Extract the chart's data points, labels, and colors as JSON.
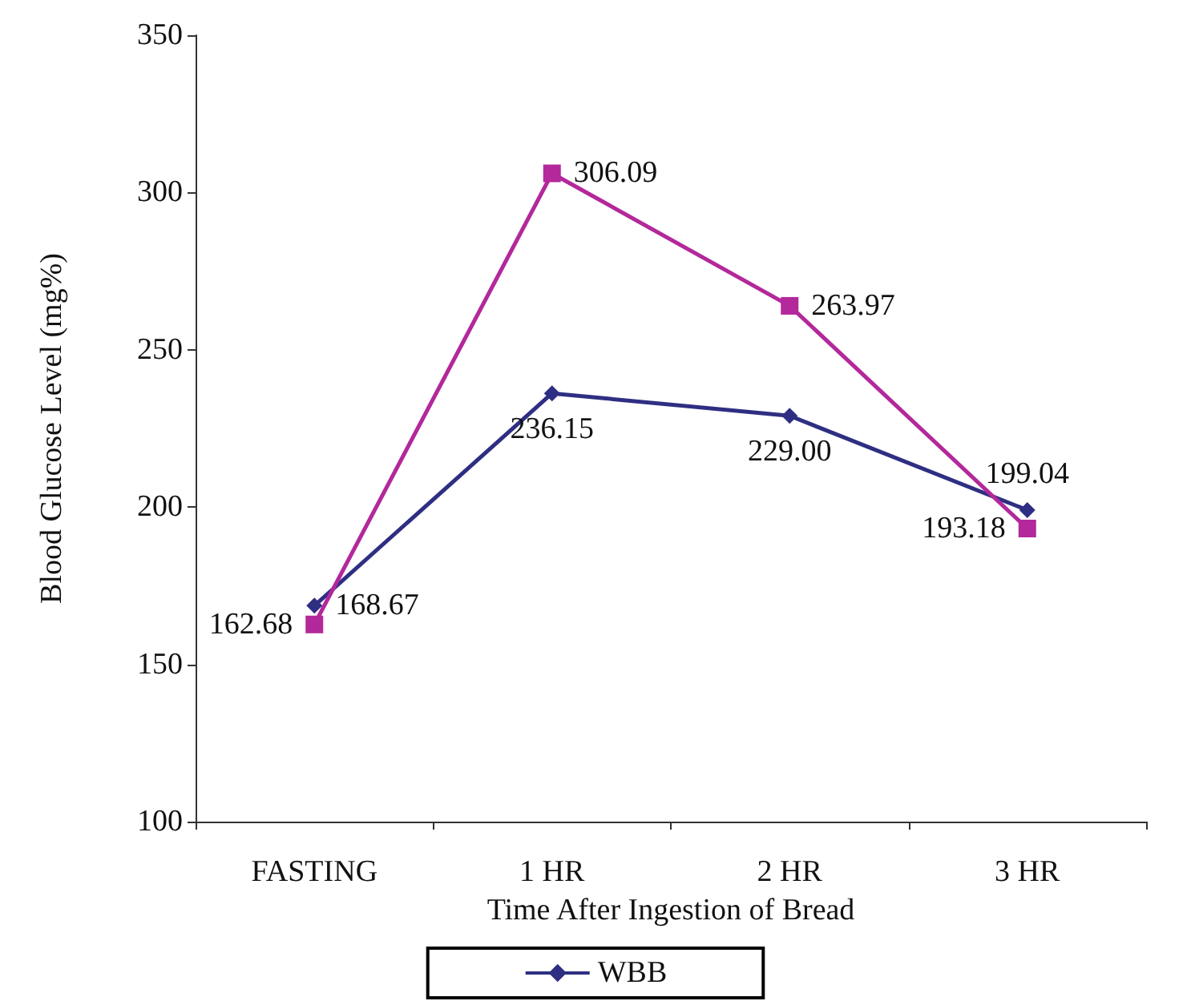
{
  "chart_data": {
    "type": "line",
    "xlabel": "Time After Ingestion of Bread",
    "ylabel": "Blood Glucose Level (mg%)",
    "categories": [
      "FASTING",
      "1 HR",
      "2 HR",
      "3 HR"
    ],
    "series": [
      {
        "name": "WBB",
        "color": "#2e2f82",
        "marker": "diamond",
        "values": [
          168.67,
          236.15,
          229.0,
          199.04
        ],
        "value_labels": [
          "168.67",
          "236.15",
          "229.00",
          "199.04"
        ]
      },
      {
        "color": "#b3289b",
        "marker": "square",
        "values": [
          162.68,
          306.09,
          263.97,
          193.18
        ],
        "value_labels": [
          "162.68",
          "306.09",
          "263.97",
          "193.18"
        ]
      }
    ],
    "ylim": [
      100,
      350
    ],
    "yticks": [
      100,
      150,
      200,
      250,
      300,
      350
    ],
    "grid": false,
    "legend": "bottom",
    "line_style": "solid"
  }
}
